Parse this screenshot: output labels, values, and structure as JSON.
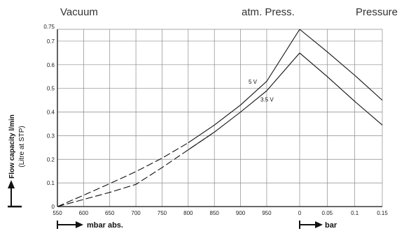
{
  "chart_data": {
    "type": "line",
    "title": "",
    "top_labels": {
      "vacuum": "Vacuum",
      "atm": "atm. Press.",
      "pressure": "Pressure"
    },
    "ylabel": "Flow capacity l/min",
    "ylabel_sub": "(Litre at STP)",
    "ylim": [
      0,
      0.75
    ],
    "y_ticks": [
      "0",
      "0.1",
      "0.2",
      "0.3",
      "0.4",
      "0.5",
      "0.6",
      "0.7",
      "0.75"
    ],
    "x_vacuum_ticks": [
      "550",
      "600",
      "650",
      "700",
      "750",
      "800",
      "850",
      "900",
      "950",
      "0"
    ],
    "x_pressure_ticks": [
      "0.05",
      "0.1",
      "0.15"
    ],
    "x_vacuum_unit": "mbar abs.",
    "x_pressure_unit": "bar",
    "grid": true,
    "series": [
      {
        "name": "5 V",
        "style": "solid-above-dashed-below",
        "vacuum": {
          "x": [
            550,
            600,
            650,
            700,
            750,
            800,
            850,
            900,
            950,
            1013
          ],
          "y": [
            0.0,
            0.048,
            0.097,
            0.148,
            0.205,
            0.27,
            0.345,
            0.43,
            0.53,
            0.75
          ]
        },
        "pressure": {
          "x": [
            0,
            0.05,
            0.1,
            0.15
          ],
          "y": [
            0.75,
            0.655,
            0.555,
            0.45
          ]
        }
      },
      {
        "name": "3.5 V",
        "style": "solid-above-dashed-below",
        "vacuum": {
          "x": [
            550,
            600,
            650,
            700,
            750,
            800,
            850,
            900,
            950,
            1013
          ],
          "y": [
            0.0,
            0.03,
            0.06,
            0.094,
            0.165,
            0.24,
            0.315,
            0.4,
            0.49,
            0.65
          ]
        },
        "pressure": {
          "x": [
            0,
            0.05,
            0.1,
            0.15
          ],
          "y": [
            0.65,
            0.55,
            0.445,
            0.345
          ]
        }
      }
    ]
  }
}
